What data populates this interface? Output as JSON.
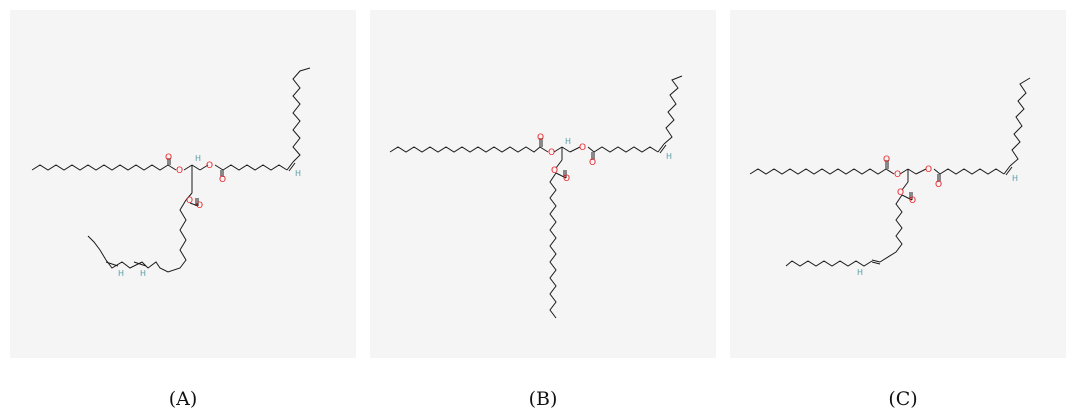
{
  "panels": [
    {
      "id": "A",
      "caption": "(A)"
    },
    {
      "id": "B",
      "caption": "(B)"
    },
    {
      "id": "C",
      "caption": "(C)"
    }
  ],
  "atoms": {
    "oxygen": "O",
    "hydrogen": "H"
  },
  "colors": {
    "oxygen": "#e8262a",
    "hydrogen": "#5a9ea8",
    "bond": "#1a1a1a",
    "panel_bg": "#f5f5f5"
  }
}
